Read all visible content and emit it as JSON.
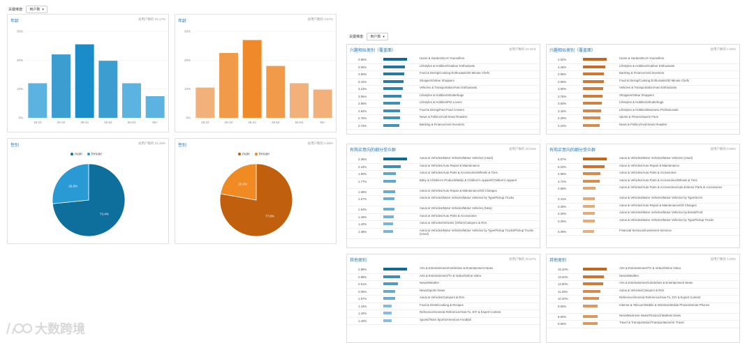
{
  "filter_left": {
    "label": "关键维度:",
    "value": "用户数"
  },
  "filter_right": {
    "label": "关键维度:",
    "value": "用户数"
  },
  "age_cards": [
    {
      "title": "年龄",
      "meta": "总用户数的 20.17%",
      "color": "#1a8cc8",
      "light": "#5cb3e0",
      "categories": [
        "18-24",
        "25-34",
        "35-44",
        "45-54",
        "55-64",
        "65+"
      ],
      "values": [
        12,
        22,
        25.5,
        19.8,
        12,
        7.5
      ],
      "yticks": [
        "30%",
        "20%",
        "10%",
        "0%"
      ]
    },
    {
      "title": "年龄",
      "meta": "总用户数的 3.67%",
      "color": "#ef8a2a",
      "light": "#f2b07a",
      "categories": [
        "18-24",
        "25-34",
        "35-44",
        "45-54",
        "55-64",
        "65+"
      ],
      "values": [
        10.5,
        22.5,
        27,
        18,
        12,
        9.8
      ],
      "yticks": [
        "30%",
        "20%",
        "10%",
        "0%"
      ]
    }
  ],
  "gender_cards": [
    {
      "title": "性别",
      "meta": "总用户数的 21.49%",
      "legend": [
        "male",
        "female"
      ],
      "colors": [
        "#0e6f9c",
        "#2a9ad4"
      ],
      "values": [
        73.4,
        26.6
      ],
      "labels": [
        "73.4%",
        "26.6%"
      ]
    },
    {
      "title": "性别",
      "meta": "总用户数的 0.98%",
      "legend": [
        "male",
        "female"
      ],
      "colors": [
        "#c0600e",
        "#f08a22"
      ],
      "values": [
        77.8,
        22.2
      ],
      "labels": [
        "77.8%",
        "22.2%"
      ]
    }
  ],
  "sections": [
    {
      "title": "兴趣相似类别（覆盖面）",
      "meta": "总用户数的 22.31%",
      "palette": "blue",
      "rows": [
        {
          "pct": "3.95%",
          "label": "Home & Garden/Do-It-Yourselfers",
          "level": 1.0
        },
        {
          "pct": "3.55%",
          "label": "Lifestyles & Hobbies/Outdoor Enthusiasts",
          "level": 0.9
        },
        {
          "pct": "3.50%",
          "label": "Food & Dining/Cooking Enthusiasts/30 Minute Chefs",
          "level": 0.88
        },
        {
          "pct": "3.42%",
          "label": "Shoppers/Value Shoppers",
          "level": 0.86
        },
        {
          "pct": "3.23%",
          "label": "Vehicles & Transportation/Auto Enthusiasts",
          "level": 0.82
        },
        {
          "pct": "3.06%",
          "label": "Lifestyles & Hobbies/Shutterbugs",
          "level": 0.77
        },
        {
          "pct": "2.85%",
          "label": "Lifestyles & Hobbies/Pet Lovers",
          "level": 0.72
        },
        {
          "pct": "2.84%",
          "label": "Food & Dining/Fast Food Cravers",
          "level": 0.72
        },
        {
          "pct": "2.75%",
          "label": "News & Politics/Avid News Readers",
          "level": 0.7
        },
        {
          "pct": "2.73%",
          "label": "Banking & Finance/Avid Investors",
          "level": 0.69
        }
      ]
    },
    {
      "title": "兴趣相似类别（覆盖面）",
      "meta": "总用户数的 1.05%",
      "palette": "orange",
      "rows": [
        {
          "pct": "4.52%",
          "label": "Home & Garden/Do-It-Yourselfers",
          "level": 1.0
        },
        {
          "pct": "4.26%",
          "label": "Lifestyles & Hobbies/Outdoor Enthusiasts",
          "level": 0.94
        },
        {
          "pct": "3.95%",
          "label": "Banking & Finance/Avid Investors",
          "level": 0.87
        },
        {
          "pct": "3.95%",
          "label": "Food & Dining/Cooking Enthusiasts/30 Minute Chefs",
          "level": 0.87
        },
        {
          "pct": "3.80%",
          "label": "Vehicles & Transportation/Auto Enthusiasts",
          "level": 0.84
        },
        {
          "pct": "3.75%",
          "label": "Shoppers/Value Shoppers",
          "level": 0.83
        },
        {
          "pct": "3.60%",
          "label": "Lifestyles & Hobbies/Shutterbugs",
          "level": 0.8
        },
        {
          "pct": "3.44%",
          "label": "Lifestyles & Hobbies/Business Professionals",
          "level": 0.76
        },
        {
          "pct": "3.29%",
          "label": "Sports & Fitness/Sports Fans",
          "level": 0.73
        },
        {
          "pct": "3.24%",
          "label": "News & Politics/Avid News Readers",
          "level": 0.72
        }
      ]
    },
    {
      "title": "有购买意向的细分受众群",
      "meta": "总用户数的 20.04%",
      "palette": "blue",
      "rows": [
        {
          "pct": "3.36%",
          "label": "Autos & Vehicles/Motor Vehicles/Motor Vehicles (Used)",
          "level": 1.0
        },
        {
          "pct": "2.44%",
          "label": "Autos & Vehicles/Auto Repair & Maintenance",
          "level": 0.73
        },
        {
          "pct": "1.80%",
          "label": "Autos & Vehicles/Auto Parts & Accessories/Wheels & Tires",
          "level": 0.54
        },
        {
          "pct": "1.77%",
          "label": "Baby & Children's Products/Baby & Children's Apparel/Children's Apparel",
          "level": 0.53
        },
        {
          "pct": "1.69%",
          "label": "Autos & Vehicles/Auto Repair & Maintenance/Oil Changes",
          "level": 0.5
        },
        {
          "pct": "1.57%",
          "label": "Autos & Vehicles/Motor Vehicles/Motor Vehicles by Type/Pickup Trucks",
          "level": 0.47
        },
        {
          "pct": "1.54%",
          "label": "Autos & Vehicles/Motor Vehicles/Motor Vehicles (New)",
          "level": 0.46
        },
        {
          "pct": "1.49%",
          "label": "Autos & Vehicles/Auto Parts & Accessories",
          "level": 0.44
        },
        {
          "pct": "1.42%",
          "label": "Autos & Vehicles/Vehicles (Other)/Campers & RVs",
          "level": 0.42
        },
        {
          "pct": "1.38%",
          "label": "Autos & Vehicles/Motor Vehicles/Motor Vehicles by Type/Pickup Trucks/Pickup Trucks (Used)",
          "level": 0.41
        }
      ]
    },
    {
      "title": "有购买意向的细分受众群",
      "meta": "总用户数的 0.98%",
      "palette": "orange",
      "rows": [
        {
          "pct": "6.67%",
          "label": "Autos & Vehicles/Motor Vehicles/Motor Vehicles (Used)",
          "level": 1.0
        },
        {
          "pct": "6.02%",
          "label": "Autos & Vehicles/Auto Repair & Maintenance",
          "level": 0.9
        },
        {
          "pct": "4.88%",
          "label": "Autos & Vehicles/Auto Parts & Accessories",
          "level": 0.73
        },
        {
          "pct": "4.72%",
          "label": "Autos & Vehicles/Auto Parts & Accessories/Wheels & Tires",
          "level": 0.71
        },
        {
          "pct": "3.58%",
          "label": "Autos & Vehicles/Auto Parts & Accessories/Auto Exterior Parts & Accessories",
          "level": 0.54
        },
        {
          "pct": "3.41%",
          "label": "Autos & Vehicles/Motor Vehicles/Motor Vehicles by Type/SUVs",
          "level": 0.51
        },
        {
          "pct": "3.25%",
          "label": "Autos & Vehicles/Auto Repair & Maintenance/Oil Changes",
          "level": 0.49
        },
        {
          "pct": "3.25%",
          "label": "Autos & Vehicles/Motor Vehicles/Motor Vehicles by Brand/Ford",
          "level": 0.49
        },
        {
          "pct": "3.25%",
          "label": "Autos & Vehicles/Motor Vehicles/Motor Vehicles by Type/Pickup Trucks",
          "level": 0.49
        },
        {
          "pct": "3.09%",
          "label": "Financial Services/Investment Services",
          "level": 0.46
        }
      ]
    },
    {
      "title": "其他类别",
      "meta": "总用户数的 20.67%",
      "palette": "blue",
      "rows": [
        {
          "pct": "3.99%",
          "label": "Arts & Entertainment/Celebrities & Entertainment News",
          "level": 1.0
        },
        {
          "pct": "2.88%",
          "label": "Arts & Entertainment/TV & Video/Online Video",
          "level": 0.72
        },
        {
          "pct": "2.51%",
          "label": "News/Weather",
          "level": 0.63
        },
        {
          "pct": "2.05%",
          "label": "News/Sports News",
          "level": 0.51
        },
        {
          "pct": "1.97%",
          "label": "Autos & Vehicles/Campers & RVs",
          "level": 0.49
        },
        {
          "pct": "1.43%",
          "label": "Food & Drink/Cooking & Recipes",
          "level": 0.36
        },
        {
          "pct": "1.42%",
          "label": "Reference/General Reference/How-To, DIY & Expert Content",
          "level": 0.36
        },
        {
          "pct": "1.40%",
          "label": "Sports/Team Sports/American Football",
          "level": 0.35
        }
      ]
    },
    {
      "title": "其他类别",
      "meta": "总用户数的 1.00%",
      "palette": "orange",
      "rows": [
        {
          "pct": "15.20%",
          "label": "Arts & Entertainment/TV & Video/Online Video",
          "level": 1.0
        },
        {
          "pct": "13.60%",
          "label": "News/Weather",
          "level": 0.89
        },
        {
          "pct": "12.80%",
          "label": "Arts & Entertainment/Celebrities & Entertainment News",
          "level": 0.84
        },
        {
          "pct": "11.20%",
          "label": "Autos & Vehicles/Campers & RVs",
          "level": 0.74
        },
        {
          "pct": "10.40%",
          "label": "Reference/General Reference/How-To, DIY & Expert Content",
          "level": 0.68
        },
        {
          "pct": "9.60%",
          "label": "Internet & Telecom/Mobile & Wireless/Mobile Phones/Smart Phones",
          "level": 0.63
        },
        {
          "pct": "9.60%",
          "label": "News/Business News/Financial Markets News",
          "level": 0.63
        },
        {
          "pct": "9.60%",
          "label": "Travel & Transportation/Transportation/Air Travel",
          "level": 0.63
        }
      ]
    }
  ],
  "watermark": "大数跨境",
  "colors": {
    "blue_dark": "#0d6a96",
    "blue_light": "#8fc7e6",
    "orange_dark": "#c4651a",
    "orange_light": "#f6c79d",
    "link": "#2a7ab5"
  }
}
